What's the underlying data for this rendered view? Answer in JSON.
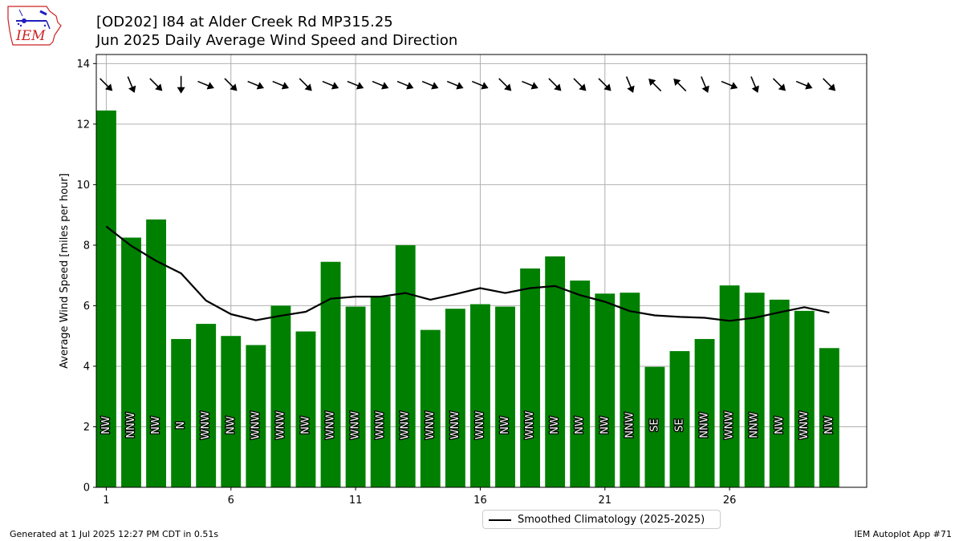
{
  "header": {
    "title_line1": "[OD202] I84 at Alder Creek Rd MP315.25",
    "title_line2": "Jun 2025 Daily Average Wind Speed and Direction"
  },
  "logo": {
    "text": "IEM"
  },
  "footer": {
    "generated": "Generated at 1 Jul 2025 12:27 PM CDT in 0.51s",
    "app": "IEM Autoplot App #71"
  },
  "colors": {
    "bar": "#008000",
    "line": "#000000",
    "grid": "#b0b0b0",
    "logo_red": "#cc2222",
    "logo_blue": "#1f1fbf"
  },
  "chart_data": {
    "type": "bar",
    "title": "[OD202] I84 at Alder Creek Rd MP315.25",
    "subtitle": "Jun 2025 Daily Average Wind Speed and Direction",
    "ylabel": "Average Wind Speed [miles per hour]",
    "xlabel": "",
    "xlim": [
      0.6,
      31.5
    ],
    "ylim": [
      0,
      14.3
    ],
    "xticks": [
      1,
      6,
      11,
      16,
      21,
      26
    ],
    "yticks": [
      0,
      2,
      4,
      6,
      8,
      10,
      12,
      14
    ],
    "grid": true,
    "legend_position": "below-center",
    "days": [
      1,
      2,
      3,
      4,
      5,
      6,
      7,
      8,
      9,
      10,
      11,
      12,
      13,
      14,
      15,
      16,
      17,
      18,
      19,
      20,
      21,
      22,
      23,
      24,
      25,
      26,
      27,
      28,
      29,
      30
    ],
    "values": [
      12.45,
      8.25,
      8.85,
      4.9,
      5.4,
      5.0,
      4.7,
      6.0,
      5.15,
      7.45,
      5.97,
      6.3,
      8.0,
      5.2,
      5.9,
      6.05,
      5.97,
      7.23,
      7.63,
      6.83,
      6.4,
      6.43,
      3.98,
      4.5,
      4.9,
      6.67,
      6.43,
      6.2,
      5.83,
      4.6
    ],
    "directions": [
      "NW",
      "NNW",
      "NW",
      "N",
      "WNW",
      "NW",
      "WNW",
      "WNW",
      "NW",
      "WNW",
      "WNW",
      "WNW",
      "WNW",
      "WNW",
      "WNW",
      "WNW",
      "NW",
      "WNW",
      "NW",
      "NW",
      "NW",
      "NNW",
      "SE",
      "SE",
      "NNW",
      "WNW",
      "NNW",
      "NW",
      "WNW",
      "NW"
    ],
    "series": [
      {
        "name": "Smoothed Climatology (2025-2025)",
        "values": [
          8.62,
          7.98,
          7.48,
          7.07,
          6.17,
          5.72,
          5.52,
          5.67,
          5.8,
          6.23,
          6.3,
          6.3,
          6.42,
          6.2,
          6.38,
          6.58,
          6.42,
          6.58,
          6.65,
          6.35,
          6.13,
          5.82,
          5.68,
          5.63,
          5.6,
          5.5,
          5.6,
          5.78,
          5.95,
          5.77
        ]
      }
    ]
  }
}
